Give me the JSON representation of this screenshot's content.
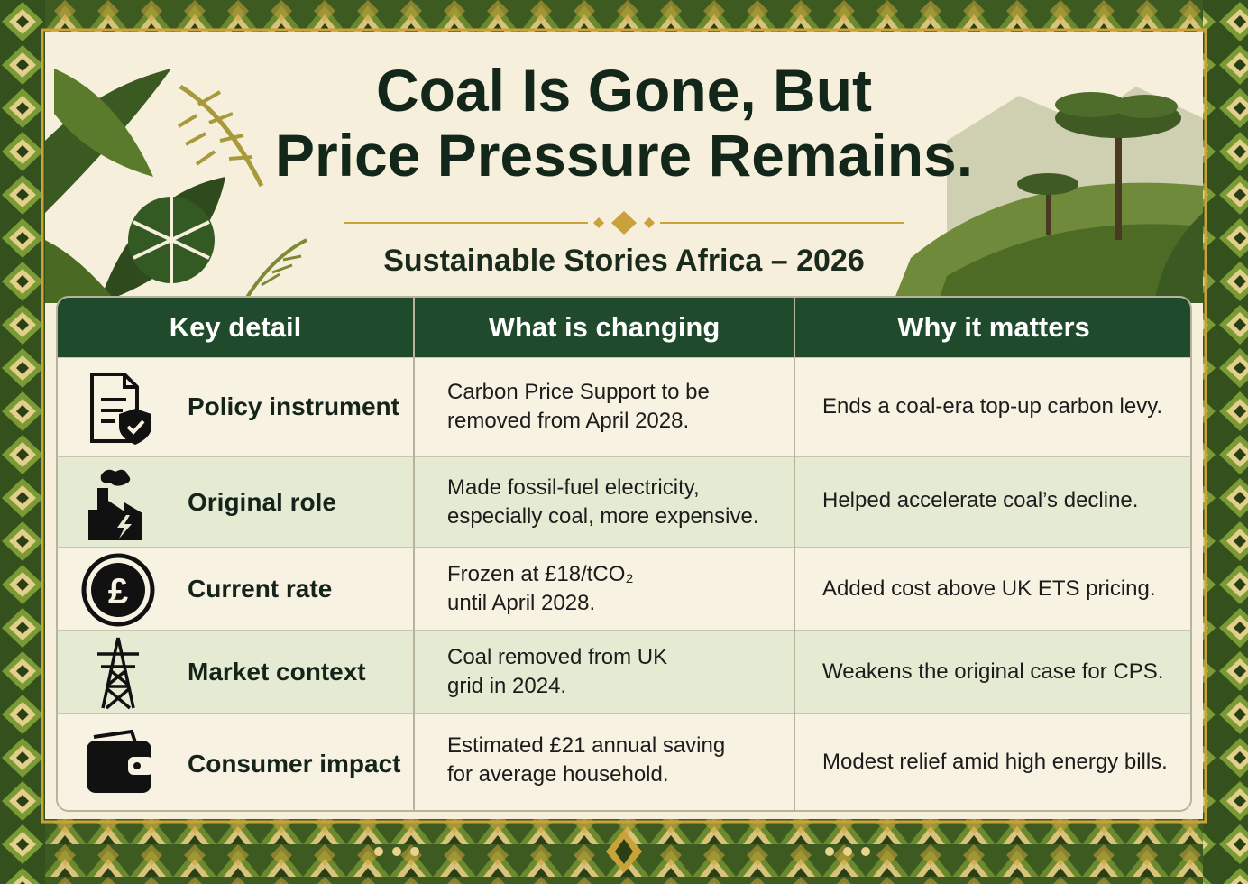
{
  "title": {
    "line1": "Coal Is Gone, But",
    "line2": "Price Pressure Remains."
  },
  "subtitle": "Sustainable Stories Africa – 2026",
  "colors": {
    "header_bg": "#1f4a2b",
    "title_text": "#13261a",
    "panel_bg": "#f6efdc",
    "alt_row": "#e5ebd3",
    "gold": "#c9a23a",
    "border_green": "#3d5a20"
  },
  "table": {
    "headers": [
      "Key detail",
      "What is changing",
      "Why it matters"
    ],
    "rows": [
      {
        "icon": "policy-document-shield-icon",
        "key": "Policy instrument",
        "change_line1": "Carbon Price Support to be",
        "change_line2": "removed from April 2028.",
        "why": "Ends a coal-era top-up carbon levy."
      },
      {
        "icon": "factory-lightning-icon",
        "key": "Original role",
        "change_line1": "Made fossil-fuel electricity,",
        "change_line2": "especially coal, more expensive.",
        "why": "Helped accelerate coal’s decline."
      },
      {
        "icon": "pound-coin-icon",
        "key": "Current rate",
        "change_line1": "Frozen at £18/tCO₂",
        "change_line2": "until April 2028.",
        "why": "Added cost above UK ETS pricing."
      },
      {
        "icon": "power-pylon-icon",
        "key": "Market context",
        "change_line1": "Coal removed from UK",
        "change_line2": "grid in 2024.",
        "why": "Weakens the original case for CPS."
      },
      {
        "icon": "wallet-icon",
        "key": "Consumer impact",
        "change_line1": "Estimated £21 annual saving",
        "change_line2": "for average household.",
        "why": "Modest relief amid high energy bills."
      }
    ]
  }
}
